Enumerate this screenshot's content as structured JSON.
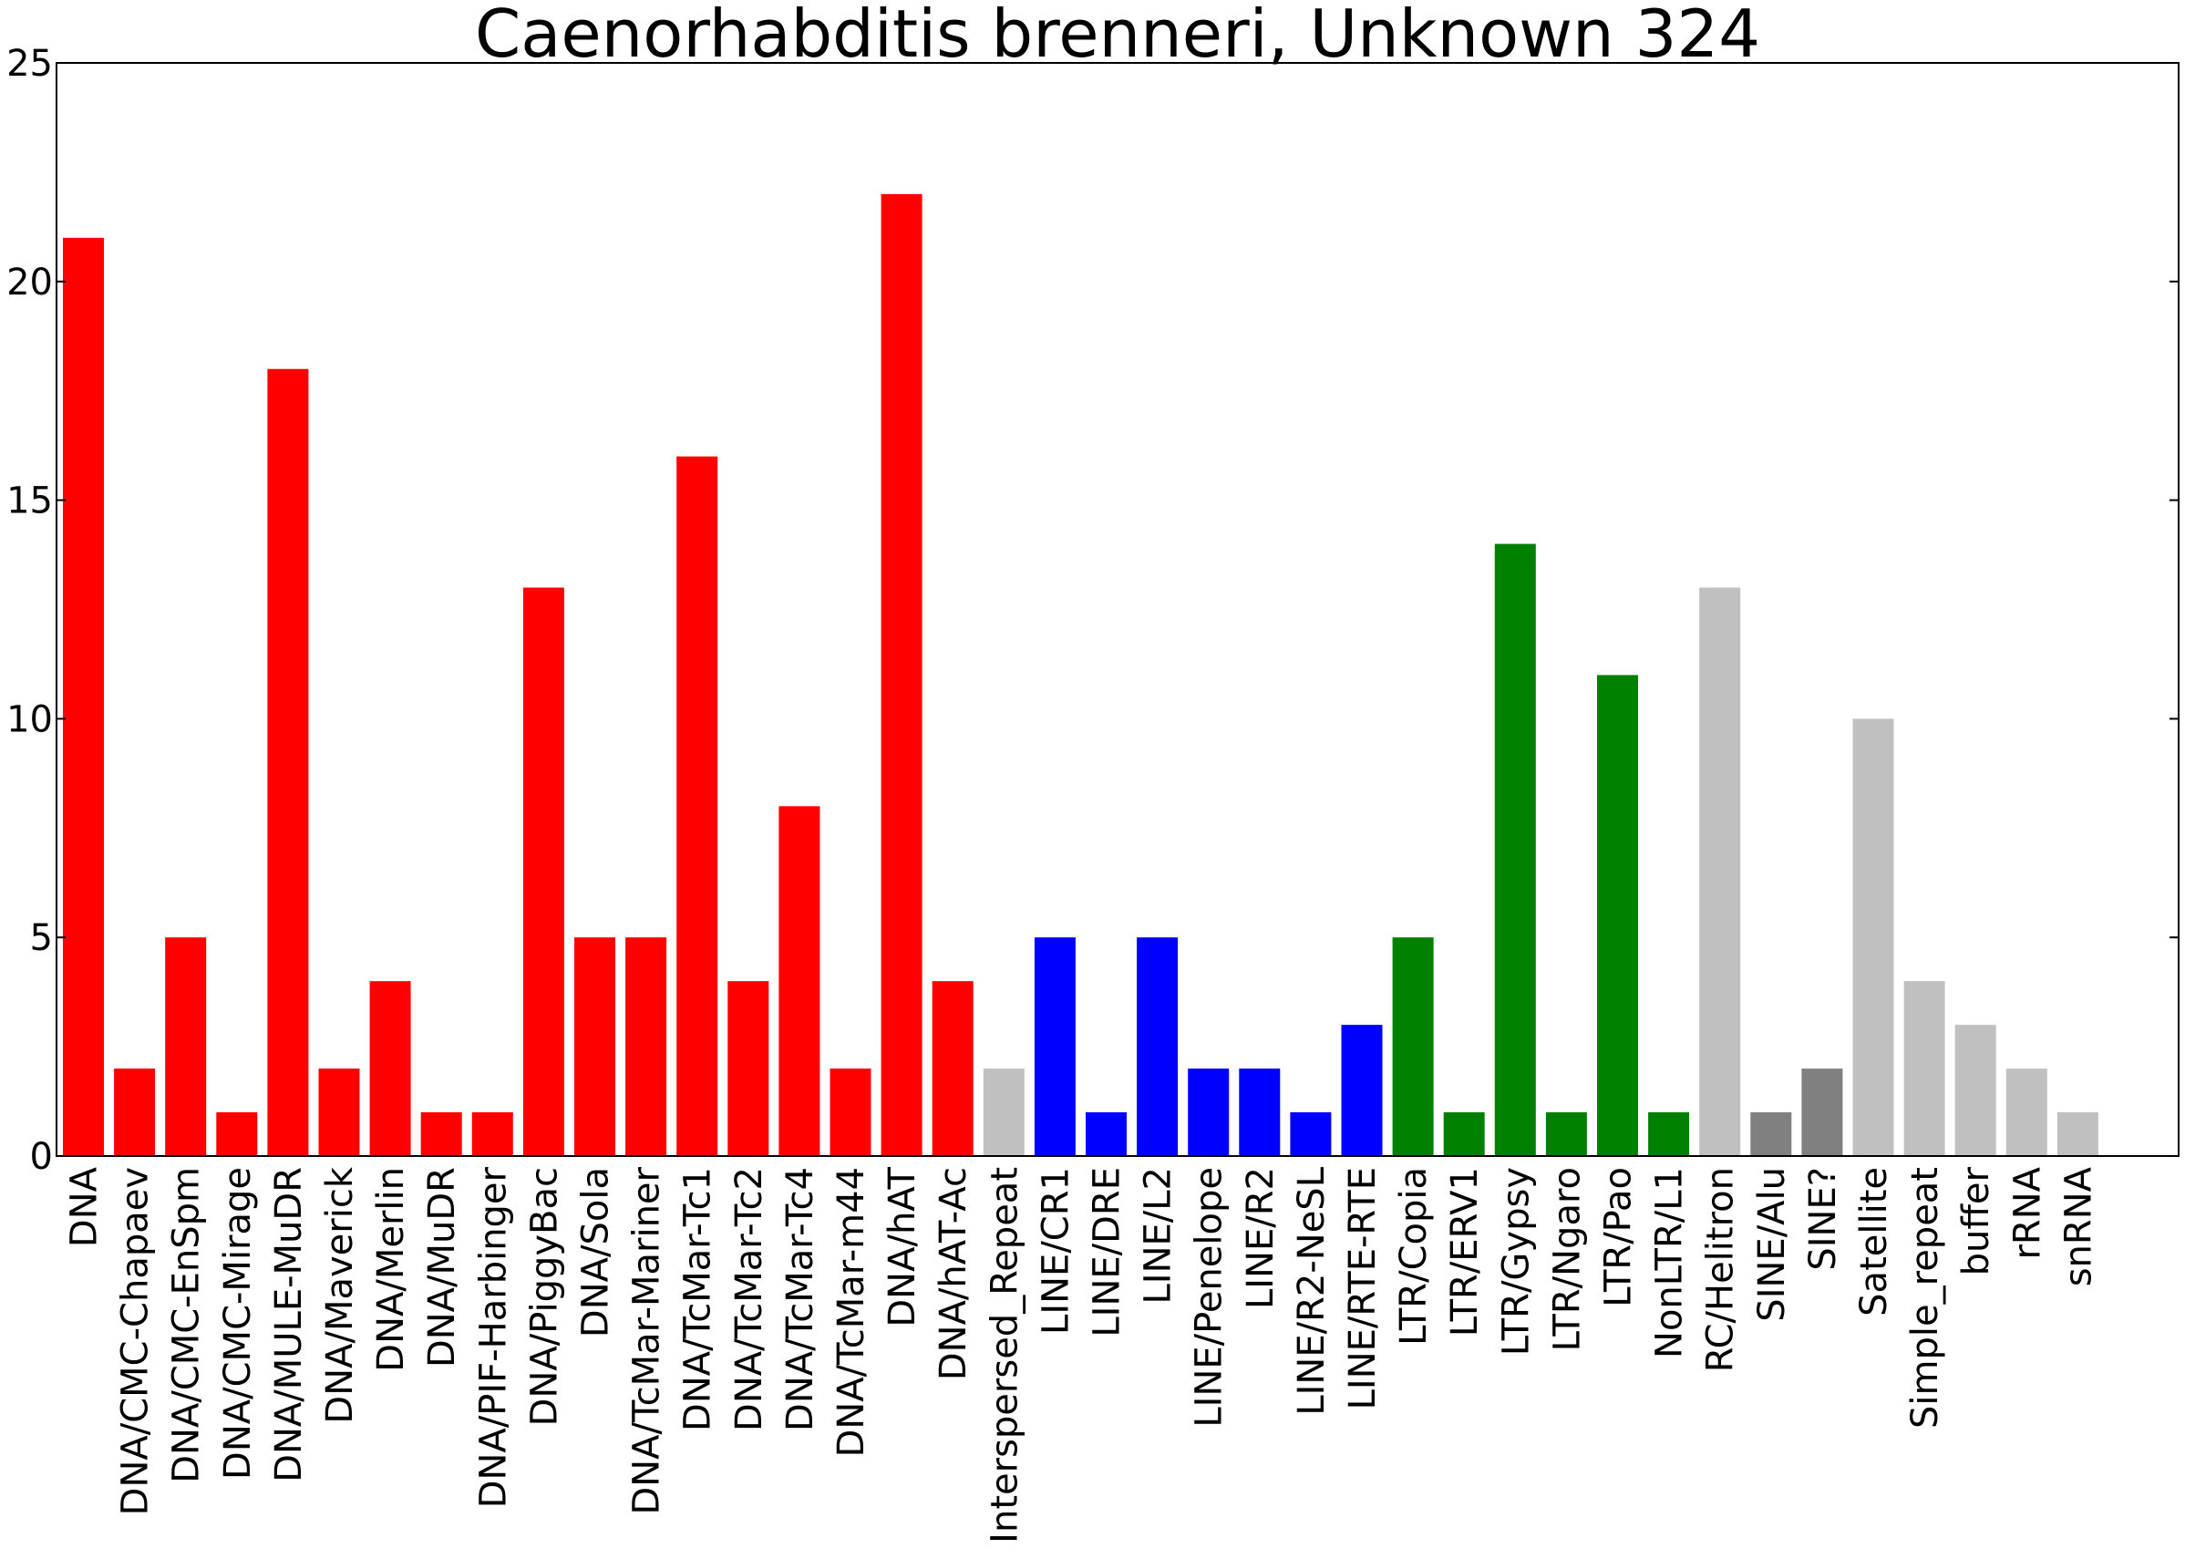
{
  "chart_data": {
    "type": "bar",
    "title": "Caenorhabditis brenneri, Unknown 324",
    "xlabel": "",
    "ylabel": "",
    "ylim": [
      0,
      25
    ],
    "yticks": [
      0,
      5,
      10,
      15,
      20,
      25
    ],
    "grid": false,
    "categories": [
      "DNA",
      "DNA/CMC-Chapaev",
      "DNA/CMC-EnSpm",
      "DNA/CMC-Mirage",
      "DNA/MULE-MuDR",
      "DNA/Maverick",
      "DNA/Merlin",
      "DNA/MuDR",
      "DNA/PIF-Harbinger",
      "DNA/PiggyBac",
      "DNA/Sola",
      "DNA/TcMar-Mariner",
      "DNA/TcMar-Tc1",
      "DNA/TcMar-Tc2",
      "DNA/TcMar-Tc4",
      "DNA/TcMar-m44",
      "DNA/hAT",
      "DNA/hAT-Ac",
      "Interspersed_Repeat",
      "LINE/CR1",
      "LINE/DRE",
      "LINE/L2",
      "LINE/Penelope",
      "LINE/R2",
      "LINE/R2-NeSL",
      "LINE/RTE-RTE",
      "LTR/Copia",
      "LTR/ERV1",
      "LTR/Gypsy",
      "LTR/Ngaro",
      "LTR/Pao",
      "NonLTR/L1",
      "RC/Helitron",
      "SINE/Alu",
      "SINE?",
      "Satellite",
      "Simple_repeat",
      "buffer",
      "rRNA",
      "snRNA"
    ],
    "values": [
      21,
      2,
      5,
      1,
      18,
      2,
      4,
      1,
      1,
      13,
      5,
      5,
      16,
      4,
      8,
      2,
      22,
      4,
      2,
      5,
      1,
      5,
      2,
      2,
      1,
      3,
      5,
      1,
      14,
      1,
      11,
      1,
      13,
      1,
      2,
      10,
      4,
      3,
      2,
      1
    ],
    "colors": [
      "#ff0000",
      "#ff0000",
      "#ff0000",
      "#ff0000",
      "#ff0000",
      "#ff0000",
      "#ff0000",
      "#ff0000",
      "#ff0000",
      "#ff0000",
      "#ff0000",
      "#ff0000",
      "#ff0000",
      "#ff0000",
      "#ff0000",
      "#ff0000",
      "#ff0000",
      "#ff0000",
      "#c0c0c0",
      "#0000ff",
      "#0000ff",
      "#0000ff",
      "#0000ff",
      "#0000ff",
      "#0000ff",
      "#0000ff",
      "#008000",
      "#008000",
      "#008000",
      "#008000",
      "#008000",
      "#008000",
      "#c0c0c0",
      "#808080",
      "#808080",
      "#c0c0c0",
      "#c0c0c0",
      "#c0c0c0",
      "#c0c0c0",
      "#c0c0c0"
    ]
  }
}
